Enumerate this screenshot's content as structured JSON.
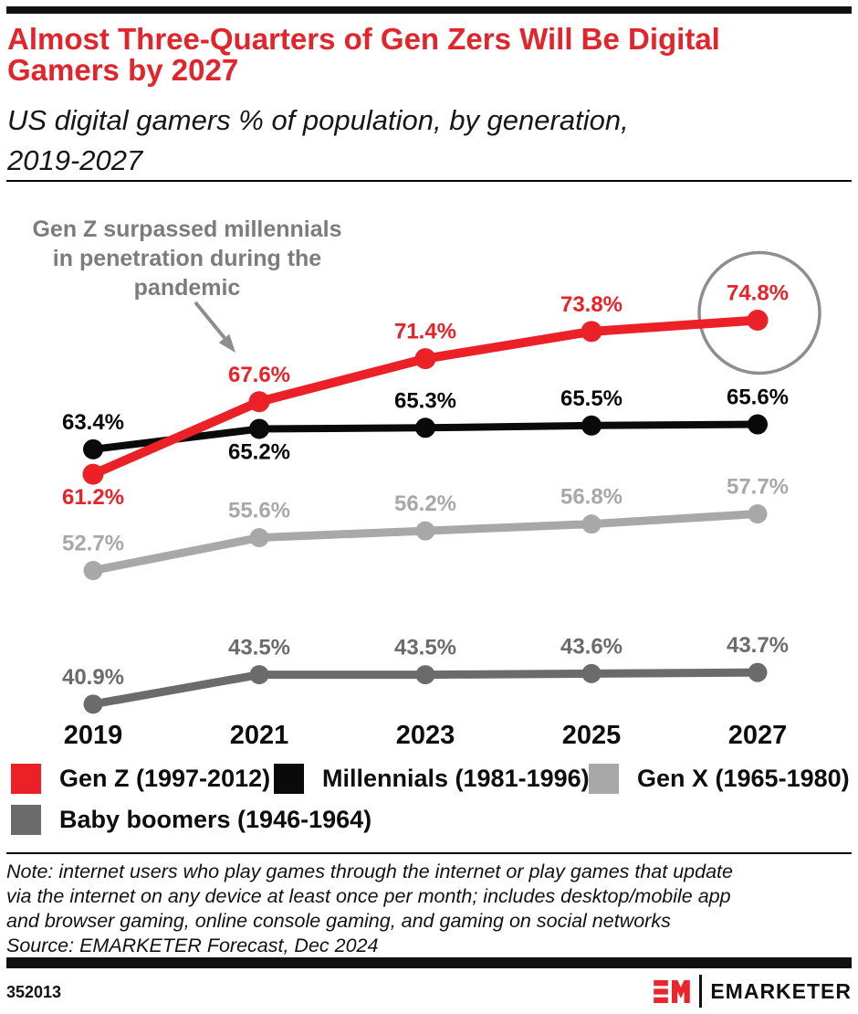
{
  "header": {
    "title": "Almost Three-Quarters of Gen Zers Will Be Digital Gamers by 2027",
    "title_lines": [
      "Almost Three-Quarters of Gen Zers Will Be Digital",
      "Gamers by 2027"
    ],
    "subtitle": "US digital gamers % of population, by generation, 2019-2027",
    "subtitle_lines": [
      "US digital gamers % of population, by generation,",
      "2019-2027"
    ]
  },
  "chart_data": {
    "type": "line",
    "title": "US digital gamers % of population, by generation, 2019-2027",
    "categories": [
      "2019",
      "2021",
      "2023",
      "2025",
      "2027"
    ],
    "unit": "%",
    "series": [
      {
        "name": "Gen Z (1997-2012)",
        "color": "#EC2128",
        "values": [
          61.2,
          67.6,
          71.4,
          73.8,
          74.8
        ],
        "label_pos": [
          "below",
          "above",
          "above",
          "above",
          "above"
        ]
      },
      {
        "name": "Millennials (1981-1996)",
        "color": "#0A0A0A",
        "values": [
          63.4,
          65.2,
          65.3,
          65.5,
          65.6
        ],
        "label_pos": [
          "above",
          "below",
          "above",
          "above",
          "above"
        ]
      },
      {
        "name": "Gen X (1965-1980)",
        "color": "#A8A8A8",
        "values": [
          52.7,
          55.6,
          56.2,
          56.8,
          57.7
        ],
        "label_pos": [
          "above",
          "above",
          "above",
          "above",
          "above"
        ]
      },
      {
        "name": "Baby boomers (1946-1964)",
        "color": "#6B6B6B",
        "values": [
          40.9,
          43.5,
          43.5,
          43.6,
          43.7
        ],
        "label_pos": [
          "above",
          "above",
          "above",
          "above",
          "above"
        ]
      }
    ],
    "annotation": "Gen Z surpassed millennials in penetration during the pandemic",
    "annotation_lines": [
      "Gen Z surpassed millennials",
      "in penetration during the",
      "pandemic"
    ],
    "highlight": {
      "series": 0,
      "index": 4,
      "label": "74.8%"
    },
    "xlabel": "",
    "ylabel": "% of population",
    "ylim": [
      38,
      78
    ],
    "grid": false,
    "legend_position": "bottom"
  },
  "note": {
    "lines": [
      "Note: internet users who play games through the internet or play games that update",
      "via the internet on any device at least once per month; includes desktop/mobile app",
      "and browser gaming, online console gaming, and gaming on social networks"
    ],
    "source": "Source: EMARKETER Forecast, Dec 2024"
  },
  "footer": {
    "chart_id": "352013",
    "brand": "EMARKETER"
  },
  "colors": {
    "title_red": "#E3242B",
    "gen_z_red": "#EC2128",
    "millennials_black": "#0A0A0A",
    "gen_x_gray": "#A8A8A8",
    "boomers_gray": "#6B6B6B",
    "annotation_gray": "#7C7C7C",
    "highlight_circle_gray": "#8E8E8E",
    "logo_red": "#E8262C"
  }
}
